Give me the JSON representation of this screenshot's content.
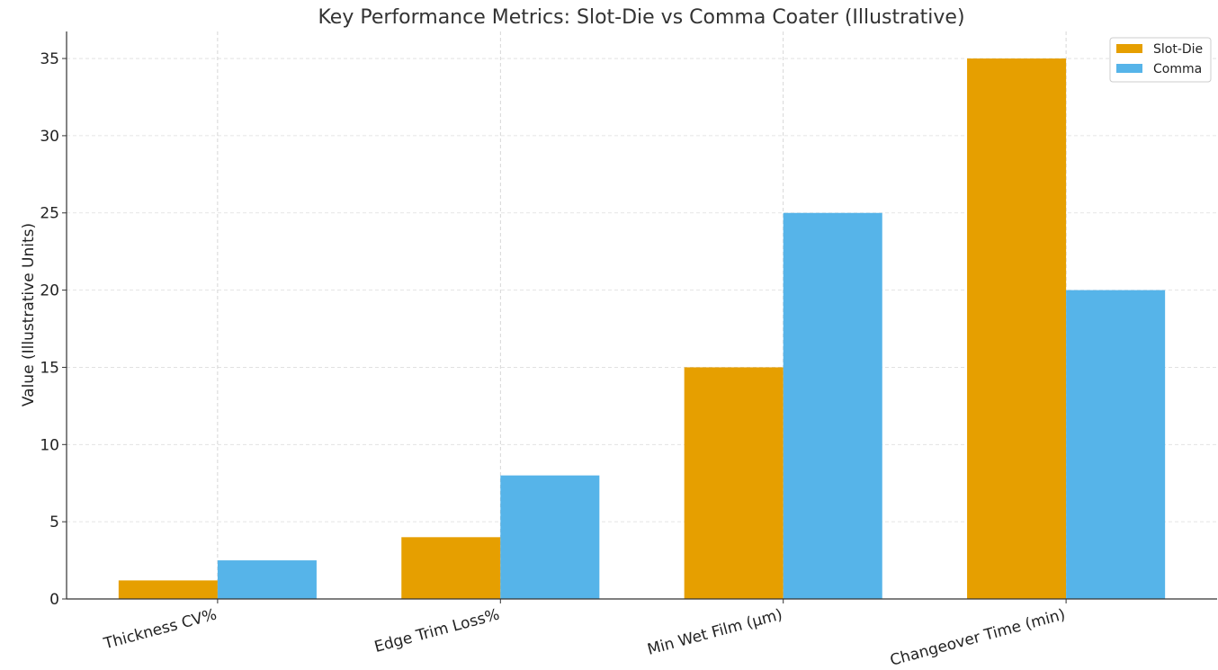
{
  "chart_data": {
    "type": "bar",
    "title": "Key Performance Metrics: Slot-Die vs Comma Coater (Illustrative)",
    "xlabel": "",
    "ylabel": "Value (Illustrative Units)",
    "categories": [
      "Thickness CV%",
      "Edge Trim Loss%",
      "Min Wet Film (µm)",
      "Changeover Time (min)"
    ],
    "series": [
      {
        "name": "Slot-Die",
        "color": "#E69F00",
        "values": [
          1.2,
          4,
          15,
          35
        ]
      },
      {
        "name": "Comma",
        "color": "#56B4E9",
        "values": [
          2.5,
          8,
          25,
          20
        ]
      }
    ],
    "ylim": [
      0,
      36.75
    ],
    "yticks": [
      0,
      5,
      10,
      15,
      20,
      25,
      30,
      35
    ],
    "grid": true,
    "legend": "top-right"
  }
}
